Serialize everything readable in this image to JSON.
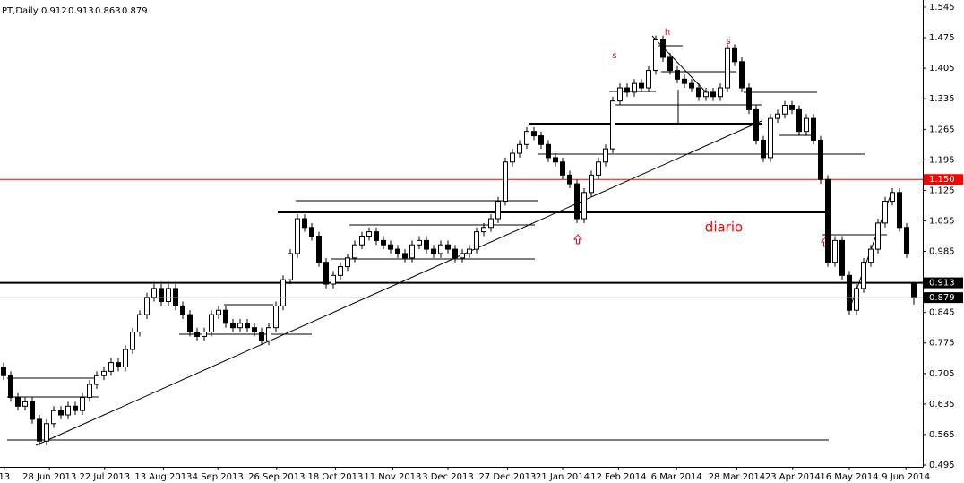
{
  "chart_data": {
    "type": "candlestick",
    "symbol": "PT,Daily",
    "open": [
      0.72,
      0.7,
      0.65,
      0.63,
      0.64,
      0.6,
      0.55,
      0.59,
      0.62,
      0.61,
      0.63,
      0.62,
      0.65,
      0.68,
      0.7,
      0.71,
      0.73,
      0.72,
      0.76,
      0.8,
      0.84,
      0.88,
      0.9,
      0.87,
      0.9,
      0.86,
      0.84,
      0.8,
      0.79,
      0.8,
      0.84,
      0.85,
      0.82,
      0.81,
      0.82,
      0.81,
      0.8,
      0.78,
      0.81,
      0.86,
      0.92,
      0.98,
      1.06,
      1.04,
      1.02,
      0.96,
      0.91,
      0.93,
      0.95,
      0.97,
      1.0,
      1.02,
      1.03,
      1.01,
      1.0,
      0.99,
      0.98,
      0.97,
      1.0,
      1.01,
      0.99,
      0.98,
      1.0,
      0.99,
      0.97,
      0.98,
      0.99,
      1.03,
      1.04,
      1.06,
      1.1,
      1.19,
      1.21,
      1.23,
      1.26,
      1.25,
      1.23,
      1.2,
      1.19,
      1.16,
      1.14,
      1.06,
      1.12,
      1.16,
      1.19,
      1.22,
      1.33,
      1.36,
      1.35,
      1.37,
      1.36,
      1.4,
      1.47,
      1.43,
      1.4,
      1.38,
      1.37,
      1.36,
      1.34,
      1.35,
      1.34,
      1.36,
      1.45,
      1.42,
      1.36,
      1.31,
      1.24,
      1.2,
      1.29,
      1.3,
      1.32,
      1.31,
      1.26,
      1.29,
      1.24,
      1.15,
      0.96,
      1.01,
      0.93,
      0.85,
      0.9,
      0.96,
      0.99,
      1.05,
      1.1,
      1.12,
      1.04,
      0.912
    ],
    "high": [
      0.73,
      0.71,
      0.66,
      0.65,
      0.65,
      0.61,
      0.6,
      0.63,
      0.63,
      0.64,
      0.64,
      0.66,
      0.69,
      0.71,
      0.72,
      0.74,
      0.74,
      0.77,
      0.81,
      0.85,
      0.89,
      0.91,
      0.91,
      0.91,
      0.91,
      0.87,
      0.85,
      0.81,
      0.81,
      0.85,
      0.86,
      0.86,
      0.83,
      0.83,
      0.83,
      0.82,
      0.81,
      0.82,
      0.87,
      0.93,
      0.99,
      1.07,
      1.07,
      1.05,
      1.03,
      0.97,
      0.94,
      0.96,
      0.98,
      1.01,
      1.03,
      1.04,
      1.04,
      1.02,
      1.01,
      1.0,
      0.99,
      1.01,
      1.02,
      1.02,
      1.0,
      1.01,
      1.01,
      1.0,
      0.99,
      1.0,
      1.04,
      1.05,
      1.07,
      1.11,
      1.2,
      1.22,
      1.24,
      1.27,
      1.27,
      1.26,
      1.24,
      1.21,
      1.2,
      1.17,
      1.15,
      1.13,
      1.17,
      1.2,
      1.23,
      1.34,
      1.37,
      1.37,
      1.38,
      1.38,
      1.41,
      1.48,
      1.48,
      1.44,
      1.41,
      1.39,
      1.38,
      1.37,
      1.36,
      1.36,
      1.37,
      1.46,
      1.46,
      1.43,
      1.37,
      1.32,
      1.25,
      1.3,
      1.31,
      1.33,
      1.33,
      1.32,
      1.3,
      1.3,
      1.25,
      1.16,
      1.02,
      1.02,
      0.94,
      0.91,
      0.97,
      1.0,
      1.06,
      1.11,
      1.13,
      1.13,
      1.05,
      0.913
    ],
    "low": [
      0.69,
      0.64,
      0.62,
      0.62,
      0.59,
      0.54,
      0.54,
      0.58,
      0.6,
      0.6,
      0.61,
      0.61,
      0.64,
      0.67,
      0.69,
      0.7,
      0.71,
      0.71,
      0.75,
      0.79,
      0.83,
      0.87,
      0.86,
      0.86,
      0.85,
      0.83,
      0.79,
      0.78,
      0.78,
      0.79,
      0.83,
      0.81,
      0.8,
      0.8,
      0.8,
      0.79,
      0.77,
      0.77,
      0.8,
      0.85,
      0.91,
      0.97,
      1.03,
      1.01,
      0.95,
      0.9,
      0.9,
      0.92,
      0.94,
      0.96,
      0.99,
      1.01,
      1.0,
      0.99,
      0.98,
      0.97,
      0.96,
      0.96,
      0.99,
      0.98,
      0.97,
      0.97,
      0.98,
      0.96,
      0.96,
      0.97,
      0.98,
      1.02,
      1.03,
      1.05,
      1.09,
      1.18,
      1.2,
      1.22,
      1.24,
      1.22,
      1.19,
      1.18,
      1.15,
      1.13,
      1.05,
      1.05,
      1.11,
      1.15,
      1.18,
      1.21,
      1.32,
      1.34,
      1.34,
      1.35,
      1.35,
      1.39,
      1.42,
      1.39,
      1.37,
      1.36,
      1.35,
      1.33,
      1.33,
      1.33,
      1.33,
      1.35,
      1.41,
      1.35,
      1.3,
      1.23,
      1.19,
      1.19,
      1.28,
      1.29,
      1.3,
      1.25,
      1.25,
      1.23,
      1.14,
      0.95,
      0.95,
      0.92,
      0.84,
      0.84,
      0.89,
      0.95,
      0.98,
      1.04,
      1.09,
      1.03,
      0.97,
      0.863
    ],
    "close": [
      0.7,
      0.65,
      0.63,
      0.64,
      0.6,
      0.55,
      0.59,
      0.62,
      0.61,
      0.63,
      0.62,
      0.65,
      0.68,
      0.7,
      0.71,
      0.73,
      0.72,
      0.76,
      0.8,
      0.84,
      0.88,
      0.9,
      0.87,
      0.9,
      0.86,
      0.84,
      0.8,
      0.79,
      0.8,
      0.84,
      0.85,
      0.82,
      0.81,
      0.82,
      0.81,
      0.8,
      0.78,
      0.81,
      0.86,
      0.92,
      0.98,
      1.06,
      1.04,
      1.02,
      0.96,
      0.91,
      0.93,
      0.95,
      0.97,
      1.0,
      1.02,
      1.03,
      1.01,
      1.0,
      0.99,
      0.98,
      0.97,
      1.0,
      1.01,
      0.99,
      0.98,
      1.0,
      0.99,
      0.97,
      0.98,
      0.99,
      1.03,
      1.04,
      1.06,
      1.1,
      1.19,
      1.21,
      1.23,
      1.26,
      1.25,
      1.23,
      1.2,
      1.19,
      1.16,
      1.14,
      1.06,
      1.12,
      1.16,
      1.19,
      1.22,
      1.33,
      1.36,
      1.35,
      1.37,
      1.36,
      1.4,
      1.47,
      1.43,
      1.4,
      1.38,
      1.37,
      1.36,
      1.34,
      1.35,
      1.34,
      1.36,
      1.45,
      1.42,
      1.36,
      1.31,
      1.24,
      1.2,
      1.29,
      1.3,
      1.32,
      1.31,
      1.26,
      1.29,
      1.24,
      1.15,
      0.96,
      1.01,
      0.93,
      0.85,
      0.9,
      0.96,
      0.99,
      1.05,
      1.1,
      1.12,
      1.04,
      0.98,
      0.879
    ],
    "xlim": [
      -0.5,
      128.25
    ],
    "xticks": [
      {
        "value": 0.1,
        "label": "13"
      },
      {
        "value": 6.4,
        "label": "28 Jun 2013"
      },
      {
        "value": 14.1,
        "label": "22 Jul 2013"
      },
      {
        "value": 22.3,
        "label": "13 Aug 2013"
      },
      {
        "value": 29.9,
        "label": "4 Sep 2013"
      },
      {
        "value": 38.1,
        "label": "26 Sep 2013"
      },
      {
        "value": 46.3,
        "label": "18 Oct 2013"
      },
      {
        "value": 54.3,
        "label": "11 Nov 2013"
      },
      {
        "value": 62,
        "label": "3 Dec 2013"
      },
      {
        "value": 70.3,
        "label": "27 Dec 2013"
      },
      {
        "value": 78,
        "label": "21 Jan 2014"
      },
      {
        "value": 85.8,
        "label": "12 Feb 2014"
      },
      {
        "value": 93.9,
        "label": "6 Mar 2014"
      },
      {
        "value": 102.3,
        "label": "28 Mar 2014"
      },
      {
        "value": 110.1,
        "label": "23 Apr 2014"
      },
      {
        "value": 118,
        "label": "16 May 2014"
      },
      {
        "value": 125.9,
        "label": "9 Jun 2014"
      }
    ],
    "ylim": [
      0.495,
      1.545
    ],
    "yticks": [
      1.545,
      1.475,
      1.405,
      1.335,
      1.265,
      1.195,
      1.125,
      1.055,
      0.985,
      0.845,
      0.775,
      0.705,
      0.635,
      0.565,
      0.495
    ],
    "levels": [
      {
        "value": 1.15,
        "label": "1.150",
        "color": "#ff0000"
      },
      {
        "value": 0.913,
        "color": "#000000"
      }
    ],
    "annotations": [
      "s",
      "h",
      "s",
      "diario"
    ]
  }
}
